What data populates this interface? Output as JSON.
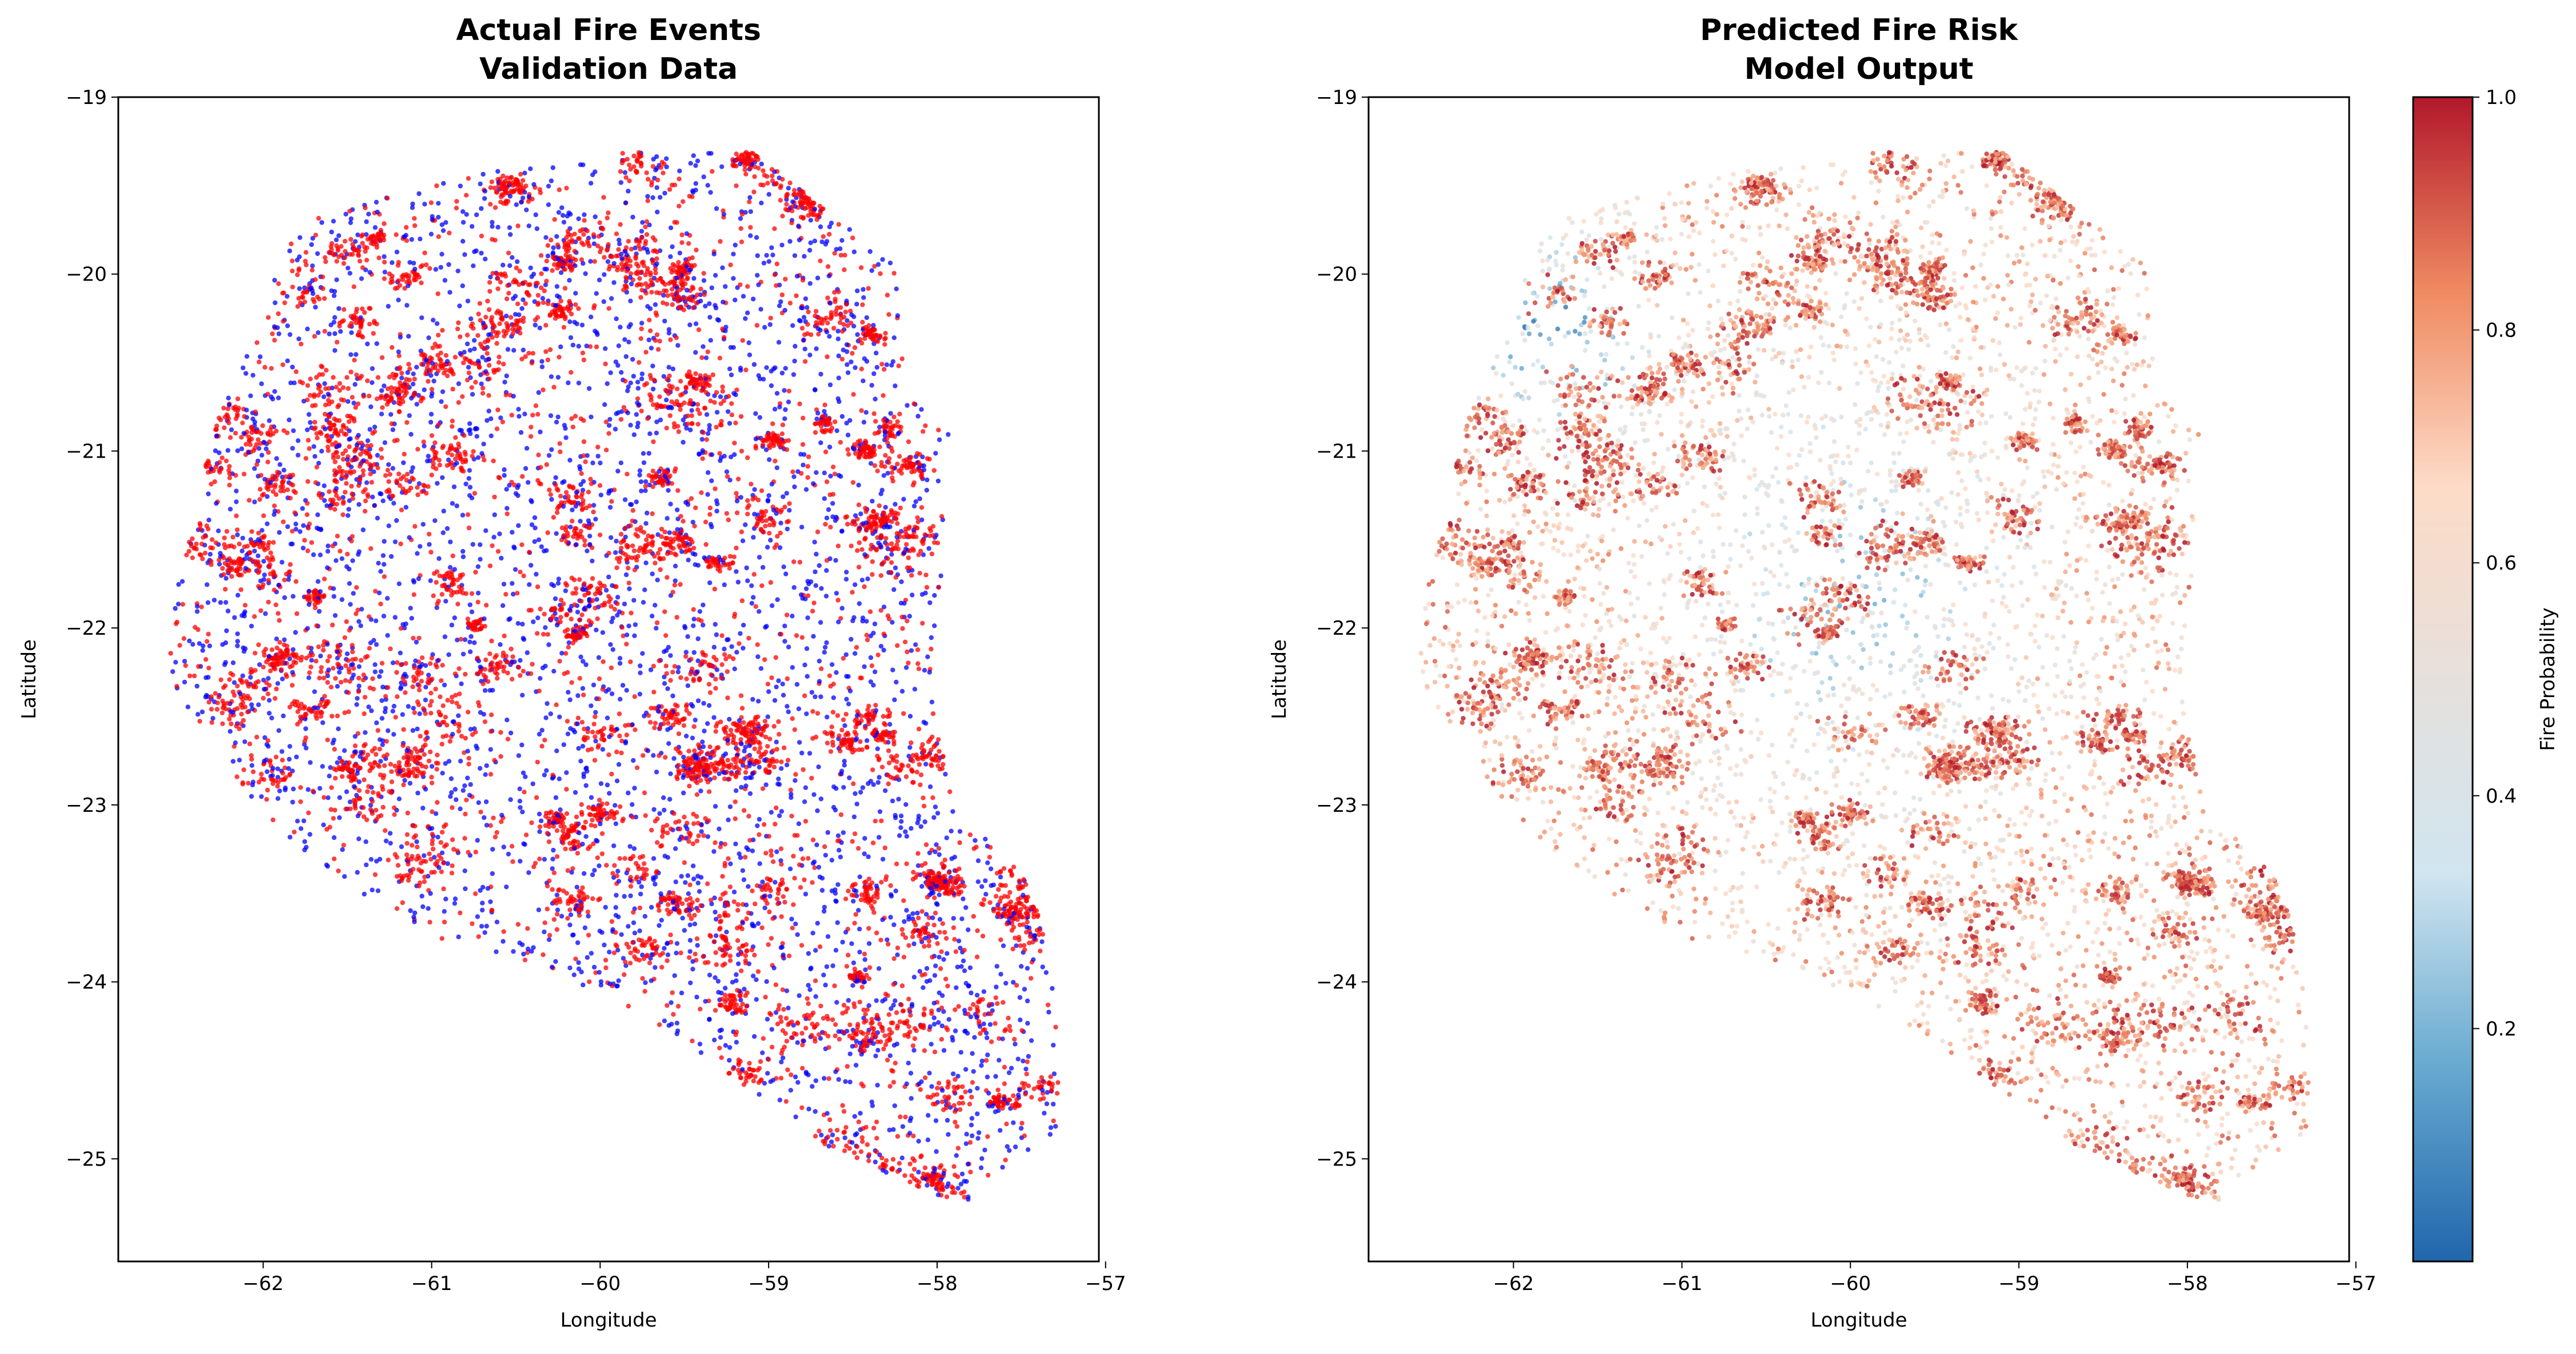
{
  "chart_data": [
    {
      "type": "scatter",
      "title_line1": "Actual Fire Events",
      "title_line2": "Validation Data",
      "xlabel": "Longitude",
      "ylabel": "Latitude",
      "xlim": [
        -62.86,
        -57.04
      ],
      "ylim": [
        -25.58,
        -19.0
      ],
      "xticks": [
        -62,
        -61,
        -60,
        -59,
        -58,
        -57
      ],
      "xtick_labels": [
        "−62",
        "−61",
        "−60",
        "−59",
        "−58",
        "−57"
      ],
      "yticks": [
        -19,
        -20,
        -21,
        -22,
        -23,
        -24,
        -25
      ],
      "ytick_labels": [
        "−19",
        "−20",
        "−21",
        "−22",
        "−23",
        "−24",
        "−25"
      ],
      "grid": false,
      "colors": {
        "fire": "#ff0000",
        "no_fire": "#0000ff"
      },
      "region_outline_lonlat": [
        [
          -62.6,
          -22.16
        ],
        [
          -62.29,
          -20.86
        ],
        [
          -61.79,
          -19.7
        ],
        [
          -60.71,
          -19.43
        ],
        [
          -59.72,
          -19.29
        ],
        [
          -59.12,
          -19.29
        ],
        [
          -58.63,
          -19.66
        ],
        [
          -58.23,
          -19.94
        ],
        [
          -58.19,
          -20.68
        ],
        [
          -57.89,
          -20.86
        ],
        [
          -57.94,
          -21.51
        ],
        [
          -58.04,
          -22.35
        ],
        [
          -57.89,
          -23.09
        ],
        [
          -57.54,
          -23.28
        ],
        [
          -57.35,
          -23.74
        ],
        [
          -57.25,
          -24.39
        ],
        [
          -57.3,
          -24.85
        ],
        [
          -57.74,
          -25.13
        ],
        [
          -57.84,
          -25.27
        ],
        [
          -58.63,
          -24.95
        ],
        [
          -59.42,
          -24.39
        ],
        [
          -60.21,
          -23.97
        ],
        [
          -60.8,
          -23.83
        ],
        [
          -61.5,
          -23.46
        ],
        [
          -61.99,
          -23.09
        ],
        [
          -62.39,
          -22.53
        ],
        [
          -62.6,
          -22.25
        ]
      ]
    },
    {
      "type": "scatter",
      "title_line1": "Predicted Fire Risk",
      "title_line2": "Model Output",
      "xlabel": "Longitude",
      "ylabel": "Latitude",
      "xlim": [
        -62.86,
        -57.04
      ],
      "ylim": [
        -25.58,
        -19.0
      ],
      "xticks": [
        -62,
        -61,
        -60,
        -59,
        -58,
        -57
      ],
      "xtick_labels": [
        "−62",
        "−61",
        "−60",
        "−59",
        "−58",
        "−57"
      ],
      "yticks": [
        -19,
        -20,
        -21,
        -22,
        -23,
        -24,
        -25
      ],
      "ytick_labels": [
        "−19",
        "−20",
        "−21",
        "−22",
        "−23",
        "−24",
        "−25"
      ],
      "grid": false,
      "colorbar": {
        "label": "Fire Probability",
        "cmap": "RdBu_r",
        "range": [
          0.0,
          1.0
        ],
        "ticks": [
          0.2,
          0.4,
          0.6,
          0.8,
          1.0
        ],
        "tick_labels": [
          "0.2",
          "0.4",
          "0.6",
          "0.8",
          "1.0"
        ],
        "stops": [
          "#2166ac",
          "#67a9cf",
          "#d1e5f0",
          "#e6e0dc",
          "#fddbc7",
          "#ef8a62",
          "#b2182b"
        ]
      }
    }
  ]
}
